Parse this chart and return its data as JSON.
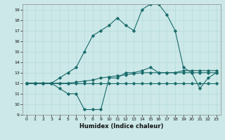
{
  "title": "",
  "xlabel": "Humidex (Indice chaleur)",
  "ylabel": "",
  "xlim": [
    -0.5,
    23.5
  ],
  "ylim": [
    9,
    19.5
  ],
  "xticks": [
    0,
    1,
    2,
    3,
    4,
    5,
    6,
    7,
    8,
    9,
    10,
    11,
    12,
    13,
    14,
    15,
    16,
    17,
    18,
    19,
    20,
    21,
    22,
    23
  ],
  "yticks": [
    9,
    10,
    11,
    12,
    13,
    14,
    15,
    16,
    17,
    18,
    19
  ],
  "bg_color": "#cce8e8",
  "line_color": "#1a6b6b",
  "lines": [
    {
      "x": [
        0,
        1,
        2,
        3,
        4,
        5,
        6,
        7,
        8,
        9,
        10,
        11,
        12,
        13,
        14,
        15,
        16,
        17,
        18,
        19,
        20,
        21,
        22,
        23
      ],
      "y": [
        12,
        12,
        12,
        12,
        12.5,
        13,
        13.5,
        15,
        16.5,
        17,
        17.5,
        18.2,
        17.5,
        17,
        19,
        19.5,
        19.5,
        18.5,
        17,
        13.5,
        13,
        13,
        13,
        13
      ]
    },
    {
      "x": [
        0,
        1,
        2,
        3,
        4,
        5,
        6,
        7,
        8,
        9,
        10,
        11,
        12,
        13,
        14,
        15,
        16,
        17,
        18,
        19,
        20,
        21,
        22,
        23
      ],
      "y": [
        12,
        12,
        12,
        12,
        11.5,
        11,
        11,
        9.5,
        9.5,
        9.5,
        12.5,
        12.5,
        13,
        13,
        13.2,
        13.5,
        13,
        13,
        13,
        13,
        13,
        11.5,
        12.5,
        13
      ]
    },
    {
      "x": [
        0,
        1,
        2,
        3,
        4,
        5,
        6,
        7,
        8,
        9,
        10,
        11,
        12,
        13,
        14,
        15,
        16,
        17,
        18,
        19,
        20,
        21,
        22,
        23
      ],
      "y": [
        12,
        12,
        12,
        12,
        12,
        12,
        12.1,
        12.2,
        12.3,
        12.5,
        12.6,
        12.7,
        12.8,
        12.9,
        13,
        13,
        13,
        13,
        13,
        13.2,
        13.2,
        13.2,
        13.2,
        13.2
      ]
    },
    {
      "x": [
        0,
        1,
        2,
        3,
        4,
        5,
        6,
        7,
        8,
        9,
        10,
        11,
        12,
        13,
        14,
        15,
        16,
        17,
        18,
        19,
        20,
        21,
        22,
        23
      ],
      "y": [
        12,
        12,
        12,
        12,
        12,
        12,
        12,
        12,
        12,
        12,
        12,
        12,
        12,
        12,
        12,
        12,
        12,
        12,
        12,
        12,
        12,
        12,
        12,
        12
      ]
    }
  ]
}
